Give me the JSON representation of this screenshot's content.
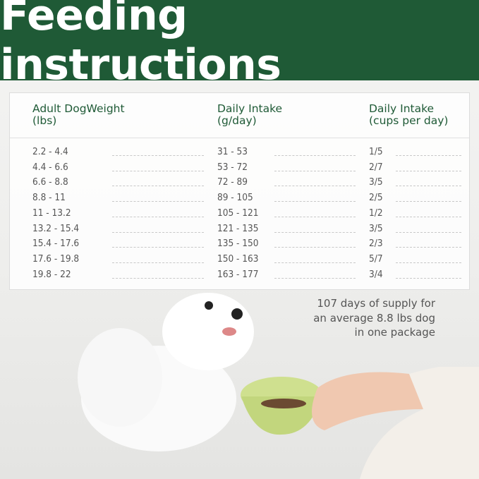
{
  "title": "Feeding instructions",
  "table": {
    "headers": [
      "Adult DogWeight\n(lbs)",
      "Daily Intake\n(g/day)",
      "Daily Intake\n(cups per day)"
    ],
    "header_lines": [
      [
        "Adult DogWeight",
        "(lbs)"
      ],
      [
        "Daily Intake",
        "(g/day)"
      ],
      [
        "Daily Intake",
        "(cups per day)"
      ]
    ],
    "rows": [
      [
        "2.2 - 4.4",
        "31 - 53",
        "1/5"
      ],
      [
        "4.4 - 6.6",
        "53 - 72",
        "2/7"
      ],
      [
        "6.6 - 8.8",
        "72 - 89",
        "3/5"
      ],
      [
        "8.8 - 11",
        "89 - 105",
        "2/5"
      ],
      [
        "11 - 13.2",
        "105 - 121",
        "1/2"
      ],
      [
        "13.2 - 15.4",
        "121 - 135",
        "3/5"
      ],
      [
        "15.4 - 17.6",
        "135 - 150",
        "2/3"
      ],
      [
        "17.6 - 19.8",
        "150 - 163",
        "5/7"
      ],
      [
        "19.8 - 22",
        "163 - 177",
        "3/4"
      ]
    ]
  },
  "note": [
    "107 days of supply for",
    "an average 8.8 lbs dog",
    "in one package"
  ],
  "colors": {
    "brand_green": "#1f5a36",
    "text_gray": "#555555"
  }
}
